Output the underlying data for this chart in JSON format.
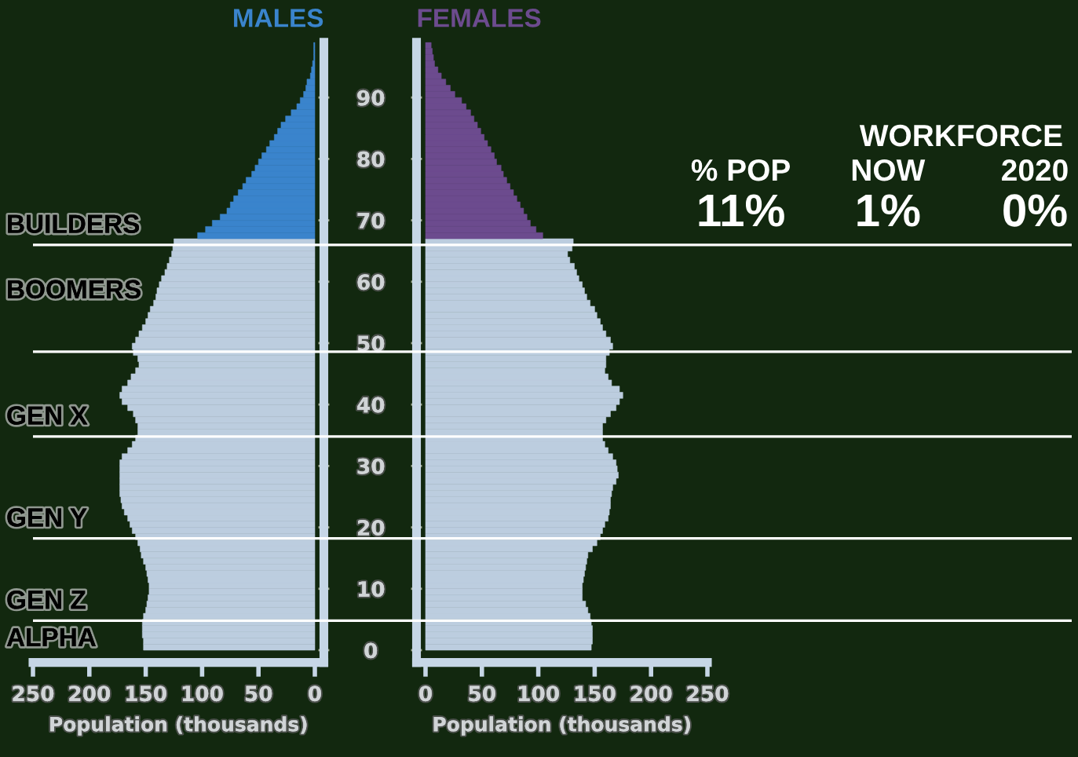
{
  "chart_data": [
    {
      "type": "histogram",
      "orientation": "horizontal",
      "title": "MALES",
      "xlabel": "Population (thousands)",
      "bins": [
        0,
        1,
        2,
        3,
        4,
        5,
        6,
        7,
        8,
        9,
        10,
        11,
        12,
        13,
        14,
        15,
        16,
        17,
        18,
        19,
        20,
        21,
        22,
        23,
        24,
        25,
        26,
        27,
        28,
        29,
        30,
        31,
        32,
        33,
        34,
        35,
        36,
        37,
        38,
        39,
        40,
        41,
        42,
        43,
        44,
        45,
        46,
        47,
        48,
        49,
        50,
        51,
        52,
        53,
        54,
        55,
        56,
        57,
        58,
        59,
        60,
        61,
        62,
        63,
        64,
        65,
        66,
        67,
        68,
        69,
        70,
        71,
        72,
        73,
        74,
        75,
        76,
        77,
        78,
        79,
        80,
        81,
        82,
        83,
        84,
        85,
        86,
        87,
        88,
        89,
        90,
        91,
        92,
        93,
        94,
        95,
        96,
        97,
        98,
        99
      ],
      "values": [
        152,
        152,
        153,
        153,
        153,
        152,
        150,
        149,
        148,
        147,
        147,
        148,
        149,
        150,
        152,
        154,
        155,
        157,
        159,
        162,
        164,
        166,
        169,
        171,
        172,
        173,
        173,
        173,
        173,
        173,
        173,
        171,
        166,
        162,
        159,
        157,
        157,
        159,
        161,
        166,
        171,
        173,
        171,
        166,
        163,
        159,
        156,
        157,
        161,
        162,
        159,
        156,
        153,
        150,
        148,
        146,
        143,
        141,
        140,
        138,
        136,
        133,
        131,
        129,
        127,
        126,
        125,
        104,
        97,
        91,
        84,
        78,
        75,
        72,
        68,
        64,
        61,
        56,
        53,
        50,
        47,
        43,
        40,
        36,
        33,
        30,
        26,
        21,
        16,
        13,
        10,
        8,
        7,
        4,
        3,
        2,
        1,
        1,
        1
      ],
      "colors": [
        "#bccddf",
        "#bccddf",
        "#bccddf",
        "#bccddf",
        "#bccddf",
        "#bccddf",
        "#bccddf",
        "#bccddf",
        "#bccddf",
        "#bccddf",
        "#bccddf",
        "#bccddf",
        "#bccddf",
        "#bccddf",
        "#bccddf",
        "#bccddf",
        "#bccddf",
        "#bccddf",
        "#bccddf",
        "#bccddf",
        "#bccddf",
        "#bccddf",
        "#bccddf",
        "#bccddf",
        "#bccddf",
        "#bccddf",
        "#bccddf",
        "#bccddf",
        "#bccddf",
        "#bccddf",
        "#bccddf",
        "#bccddf",
        "#bccddf",
        "#bccddf",
        "#bccddf",
        "#bccddf",
        "#bccddf",
        "#bccddf",
        "#bccddf",
        "#bccddf",
        "#bccddf",
        "#bccddf",
        "#bccddf",
        "#bccddf",
        "#bccddf",
        "#bccddf",
        "#bccddf",
        "#bccddf",
        "#bccddf",
        "#bccddf",
        "#bccddf",
        "#bccddf",
        "#bccddf",
        "#bccddf",
        "#bccddf",
        "#bccddf",
        "#bccddf",
        "#bccddf",
        "#bccddf",
        "#bccddf",
        "#bccddf",
        "#bccddf",
        "#bccddf",
        "#bccddf",
        "#bccddf",
        "#bccddf",
        "#bccddf",
        "#3a84cc",
        "#3a84cc",
        "#3a84cc",
        "#3a84cc",
        "#3a84cc",
        "#3a84cc",
        "#3a84cc",
        "#3a84cc",
        "#3a84cc",
        "#3a84cc",
        "#3a84cc",
        "#3a84cc",
        "#3a84cc",
        "#3a84cc",
        "#3a84cc",
        "#3a84cc",
        "#3a84cc",
        "#3a84cc",
        "#3a84cc",
        "#3a84cc",
        "#3a84cc",
        "#3a84cc",
        "#3a84cc",
        "#3a84cc",
        "#3a84cc",
        "#3a84cc",
        "#3a84cc",
        "#3a84cc",
        "#3a84cc",
        "#3a84cc",
        "#3a84cc",
        "#3a84cc"
      ],
      "xlim": [
        250,
        -8
      ],
      "xticks": [
        250,
        200,
        150,
        100,
        50,
        0
      ],
      "ylim": [
        -2,
        99
      ],
      "yticks": [
        0,
        10,
        20,
        30,
        40,
        50,
        60,
        70,
        80,
        90
      ],
      "ref_lines": [
        {
          "axis": "y",
          "value": 66,
          "label": "BUILDERS",
          "color": "#ffffff"
        },
        {
          "axis": "y",
          "value": 48.6,
          "label": "BOOMERS",
          "color": "#ffffff"
        },
        {
          "axis": "y",
          "value": 34.8,
          "label": "GEN X",
          "color": "#ffffff"
        },
        {
          "axis": "y",
          "value": 18.2,
          "label": "GEN Y",
          "color": "#ffffff"
        },
        {
          "axis": "y",
          "value": 4.8,
          "label": "GEN Z",
          "color": "#ffffff"
        }
      ],
      "annotations": [
        "ALPHA"
      ]
    },
    {
      "type": "histogram",
      "orientation": "horizontal",
      "title": "FEMALES",
      "xlabel": "Population (thousands)",
      "bins": [
        0,
        1,
        2,
        3,
        4,
        5,
        6,
        7,
        8,
        9,
        10,
        11,
        12,
        13,
        14,
        15,
        16,
        17,
        18,
        19,
        20,
        21,
        22,
        23,
        24,
        25,
        26,
        27,
        28,
        29,
        30,
        31,
        32,
        33,
        34,
        35,
        36,
        37,
        38,
        39,
        40,
        41,
        42,
        43,
        44,
        45,
        46,
        47,
        48,
        49,
        50,
        51,
        52,
        53,
        54,
        55,
        56,
        57,
        58,
        59,
        60,
        61,
        62,
        63,
        64,
        65,
        66,
        67,
        68,
        69,
        70,
        71,
        72,
        73,
        74,
        75,
        76,
        77,
        78,
        79,
        80,
        81,
        82,
        83,
        84,
        85,
        86,
        87,
        88,
        89,
        90,
        91,
        92,
        93,
        94,
        95,
        96,
        97,
        98,
        99
      ],
      "values": [
        147,
        148,
        148,
        148,
        147,
        146,
        144,
        142,
        139,
        139,
        139,
        140,
        141,
        142,
        143,
        144,
        148,
        152,
        155,
        157,
        159,
        162,
        163,
        164,
        164,
        165,
        166,
        169,
        171,
        170,
        169,
        166,
        162,
        159,
        157,
        157,
        157,
        160,
        164,
        169,
        172,
        175,
        172,
        165,
        162,
        159,
        160,
        160,
        163,
        166,
        164,
        160,
        157,
        155,
        152,
        150,
        146,
        143,
        141,
        139,
        136,
        134,
        132,
        128,
        126,
        130,
        131,
        104,
        98,
        93,
        90,
        87,
        84,
        81,
        78,
        75,
        72,
        69,
        67,
        63,
        61,
        58,
        55,
        52,
        49,
        46,
        43,
        40,
        36,
        32,
        26,
        22,
        18,
        14,
        11,
        8,
        7,
        6,
        5
      ],
      "colors": [
        "#bccddf",
        "#bccddf",
        "#bccddf",
        "#bccddf",
        "#bccddf",
        "#bccddf",
        "#bccddf",
        "#bccddf",
        "#bccddf",
        "#bccddf",
        "#bccddf",
        "#bccddf",
        "#bccddf",
        "#bccddf",
        "#bccddf",
        "#bccddf",
        "#bccddf",
        "#bccddf",
        "#bccddf",
        "#bccddf",
        "#bccddf",
        "#bccddf",
        "#bccddf",
        "#bccddf",
        "#bccddf",
        "#bccddf",
        "#bccddf",
        "#bccddf",
        "#bccddf",
        "#bccddf",
        "#bccddf",
        "#bccddf",
        "#bccddf",
        "#bccddf",
        "#bccddf",
        "#bccddf",
        "#bccddf",
        "#bccddf",
        "#bccddf",
        "#bccddf",
        "#bccddf",
        "#bccddf",
        "#bccddf",
        "#bccddf",
        "#bccddf",
        "#bccddf",
        "#bccddf",
        "#bccddf",
        "#bccddf",
        "#bccddf",
        "#bccddf",
        "#bccddf",
        "#bccddf",
        "#bccddf",
        "#bccddf",
        "#bccddf",
        "#bccddf",
        "#bccddf",
        "#bccddf",
        "#bccddf",
        "#bccddf",
        "#bccddf",
        "#bccddf",
        "#bccddf",
        "#bccddf",
        "#bccddf",
        "#bccddf",
        "#6c4b8e",
        "#6c4b8e",
        "#6c4b8e",
        "#6c4b8e",
        "#6c4b8e",
        "#6c4b8e",
        "#6c4b8e",
        "#6c4b8e",
        "#6c4b8e",
        "#6c4b8e",
        "#6c4b8e",
        "#6c4b8e",
        "#6c4b8e",
        "#6c4b8e",
        "#6c4b8e",
        "#6c4b8e",
        "#6c4b8e",
        "#6c4b8e",
        "#6c4b8e",
        "#6c4b8e",
        "#6c4b8e",
        "#6c4b8e",
        "#6c4b8e",
        "#6c4b8e",
        "#6c4b8e",
        "#6c4b8e",
        "#6c4b8e",
        "#6c4b8e",
        "#6c4b8e",
        "#6c4b8e",
        "#6c4b8e",
        "#6c4b8e"
      ],
      "xlim": [
        -8,
        250
      ],
      "xticks": [
        0,
        50,
        100,
        150,
        200,
        250
      ],
      "ylim": [
        -2,
        99
      ],
      "yticks": [
        0,
        10,
        20,
        30,
        40,
        50,
        60,
        70,
        80,
        90
      ],
      "tick_labels": "x"
    },
    {
      "type": "other",
      "title": "WORKFORCE",
      "categories": [
        "% POP",
        "NOW",
        "2020"
      ],
      "annotations": [
        "11%",
        "1%",
        "0%"
      ]
    }
  ]
}
